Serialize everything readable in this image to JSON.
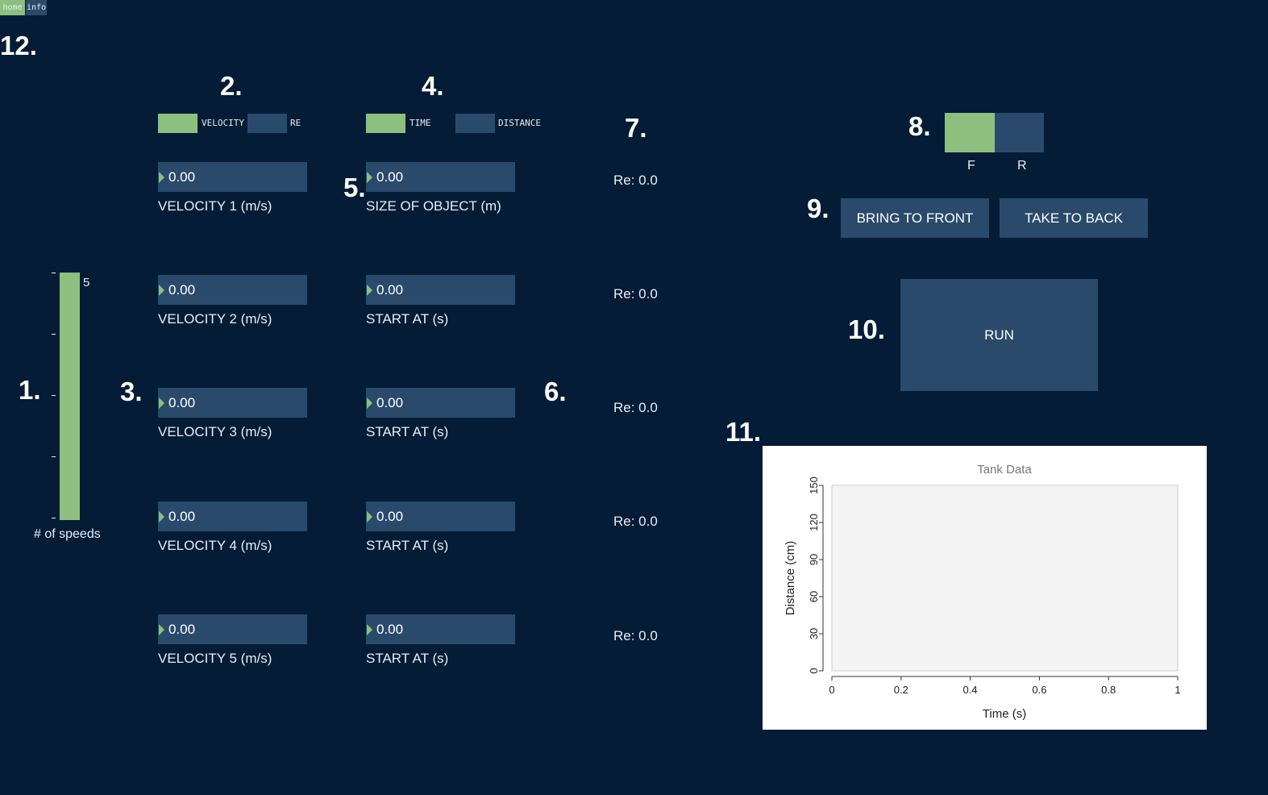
{
  "nav": {
    "home_label": "home",
    "info_label": "info"
  },
  "markers": [
    "12.",
    "2.",
    "4.",
    "7.",
    "8.",
    "9.",
    "5.",
    "1.",
    "3.",
    "6.",
    "10.",
    "11."
  ],
  "colors": {
    "background": "#041c36",
    "accent_green": "#8dbf7e",
    "control_blue": "#2a4a6b"
  },
  "mode_toggle_left": {
    "option_a": "VELOCITY",
    "option_b": "RE",
    "selected": "VELOCITY"
  },
  "mode_toggle_right": {
    "option_a": "TIME",
    "option_b": "DISTANCE",
    "selected": "TIME"
  },
  "speeds_slider": {
    "value": "5",
    "label": "# of speeds",
    "fill_fraction": 1.0
  },
  "velocity_fields": [
    {
      "value": "0.00",
      "label": "VELOCITY 1 (m/s)"
    },
    {
      "value": "0.00",
      "label": "VELOCITY 2 (m/s)"
    },
    {
      "value": "0.00",
      "label": "VELOCITY 3 (m/s)"
    },
    {
      "value": "0.00",
      "label": "VELOCITY 4 (m/s)"
    },
    {
      "value": "0.00",
      "label": "VELOCITY 5 (m/s)"
    }
  ],
  "second_fields": [
    {
      "value": "0.00",
      "label": "SIZE OF OBJECT (m)"
    },
    {
      "value": "0.00",
      "label": "START AT (s)"
    },
    {
      "value": "0.00",
      "label": "START AT (s)"
    },
    {
      "value": "0.00",
      "label": "START AT (s)"
    },
    {
      "value": "0.00",
      "label": "START AT (s)"
    }
  ],
  "re_values": [
    "Re: 0.0",
    "Re: 0.0",
    "Re: 0.0",
    "Re: 0.0",
    "Re: 0.0"
  ],
  "direction_toggle": {
    "option_a": "F",
    "option_b": "R",
    "selected": "F"
  },
  "layer_buttons": {
    "front_label": "BRING TO FRONT",
    "back_label": "TAKE TO BACK"
  },
  "run_label": "RUN",
  "chart_data": {
    "type": "line",
    "title": "Tank Data",
    "xlabel": "Time (s)",
    "ylabel": "Distance (cm)",
    "xlim": [
      0,
      1
    ],
    "ylim": [
      0,
      150
    ],
    "xticks": [
      "0",
      "0.2",
      "0.4",
      "0.6",
      "0.8",
      "1"
    ],
    "yticks": [
      "0",
      "30",
      "60",
      "90",
      "120",
      "150"
    ],
    "series": []
  }
}
